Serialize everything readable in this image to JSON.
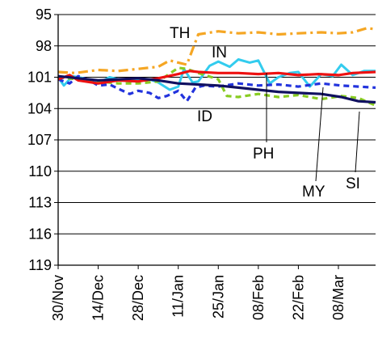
{
  "chart_data": {
    "type": "line",
    "title": "",
    "xlabel": "",
    "ylabel": "",
    "y_inverted": true,
    "ylim": [
      95,
      119
    ],
    "yticks": [
      95,
      98,
      101,
      104,
      107,
      110,
      113,
      116,
      119
    ],
    "xlim": [
      "2007-11-30",
      "2008-03-20"
    ],
    "x_tick_dates": [
      "2007-11-30",
      "2007-12-14",
      "2007-12-28",
      "2008-01-11",
      "2008-01-25",
      "2008-02-08",
      "2008-02-22",
      "2008-03-07"
    ],
    "x_tick_labels": [
      "30/Nov",
      "14/Dec",
      "28/Dec",
      "11/Jan",
      "25/Jan",
      "08/Feb",
      "22/Feb",
      "08/Mar"
    ],
    "grid": {
      "horizontal": true,
      "vertical": false
    },
    "legend": "none",
    "series": [
      {
        "name": "TH",
        "color": "#f5a623",
        "dash": "dashdot",
        "x": [
          "2007-11-30",
          "2007-12-06",
          "2007-12-14",
          "2007-12-21",
          "2007-12-28",
          "2008-01-04",
          "2008-01-08",
          "2008-01-14",
          "2008-01-18",
          "2008-01-25",
          "2008-02-01",
          "2008-02-08",
          "2008-02-15",
          "2008-02-22",
          "2008-03-01",
          "2008-03-07",
          "2008-03-12",
          "2008-03-17",
          "2008-03-20"
        ],
        "y": [
          100.5,
          100.6,
          100.3,
          100.4,
          100.2,
          100.0,
          99.4,
          99.8,
          96.9,
          96.6,
          96.8,
          96.7,
          96.9,
          96.8,
          96.7,
          96.8,
          96.7,
          96.3,
          96.4
        ]
      },
      {
        "name": "IN",
        "color": "#33ccee",
        "dash": "solid",
        "x": [
          "2007-11-30",
          "2007-12-02",
          "2007-12-05",
          "2007-12-09",
          "2007-12-14",
          "2007-12-18",
          "2007-12-21",
          "2007-12-25",
          "2007-12-28",
          "2008-01-01",
          "2008-01-04",
          "2008-01-08",
          "2008-01-11",
          "2008-01-13",
          "2008-01-16",
          "2008-01-18",
          "2008-01-22",
          "2008-01-25",
          "2008-01-29",
          "2008-02-01",
          "2008-02-05",
          "2008-02-08",
          "2008-02-12",
          "2008-02-15",
          "2008-02-19",
          "2008-02-22",
          "2008-02-26",
          "2008-03-01",
          "2008-03-05",
          "2008-03-08",
          "2008-03-12",
          "2008-03-16",
          "2008-03-20"
        ],
        "y": [
          101.0,
          101.8,
          100.9,
          101.1,
          101.6,
          101.0,
          101.2,
          101.4,
          101.3,
          101.2,
          101.5,
          102.2,
          101.9,
          100.2,
          101.5,
          101.4,
          99.9,
          99.5,
          100.0,
          99.3,
          99.6,
          99.4,
          101.6,
          101.0,
          100.6,
          100.5,
          101.9,
          100.7,
          100.9,
          99.8,
          100.8,
          100.4,
          100.4
        ]
      },
      {
        "name": "ID",
        "color": "#2233dd",
        "dash": "dashed",
        "x": [
          "2007-11-30",
          "2007-12-04",
          "2007-12-07",
          "2007-12-11",
          "2007-12-14",
          "2007-12-18",
          "2007-12-21",
          "2007-12-25",
          "2007-12-28",
          "2008-01-01",
          "2008-01-04",
          "2008-01-07",
          "2008-01-11",
          "2008-01-14",
          "2008-01-17",
          "2008-01-20",
          "2008-01-25",
          "2008-02-01",
          "2008-02-08",
          "2008-02-15",
          "2008-02-22",
          "2008-03-01",
          "2008-03-08",
          "2008-03-14",
          "2008-03-20"
        ],
        "y": [
          101.2,
          101.6,
          100.9,
          101.3,
          101.8,
          101.7,
          102.1,
          102.6,
          102.3,
          102.5,
          103.0,
          102.8,
          102.3,
          103.3,
          102.0,
          101.8,
          101.9,
          101.6,
          101.8,
          101.7,
          101.9,
          101.6,
          101.8,
          101.9,
          102.0
        ]
      },
      {
        "name": "MY",
        "color": "#88cc22",
        "dash": "dashed",
        "x": [
          "2007-11-30",
          "2007-12-07",
          "2007-12-14",
          "2007-12-21",
          "2007-12-28",
          "2008-01-04",
          "2008-01-11",
          "2008-01-14",
          "2008-01-18",
          "2008-01-25",
          "2008-01-28",
          "2008-02-01",
          "2008-02-08",
          "2008-02-15",
          "2008-02-22",
          "2008-03-01",
          "2008-03-08",
          "2008-03-14",
          "2008-03-20"
        ],
        "y": [
          101.0,
          101.2,
          101.4,
          101.6,
          101.6,
          101.4,
          100.1,
          100.2,
          100.6,
          101.2,
          102.8,
          102.9,
          102.6,
          102.9,
          102.7,
          103.1,
          102.8,
          103.0,
          103.7
        ]
      },
      {
        "name": "PH",
        "color": "#ee1111",
        "dash": "solid",
        "x": [
          "2007-11-30",
          "2007-12-04",
          "2007-12-07",
          "2007-12-14",
          "2007-12-21",
          "2007-12-28",
          "2008-01-04",
          "2008-01-11",
          "2008-01-15",
          "2008-01-18",
          "2008-01-25",
          "2008-02-01",
          "2008-02-08",
          "2008-02-15",
          "2008-02-22",
          "2008-02-29",
          "2008-03-07",
          "2008-03-12",
          "2008-03-20"
        ],
        "y": [
          101.2,
          100.8,
          101.3,
          101.6,
          101.3,
          101.4,
          101.1,
          100.7,
          100.4,
          100.5,
          100.6,
          100.6,
          100.7,
          100.6,
          100.8,
          100.7,
          100.8,
          100.6,
          100.5
        ]
      },
      {
        "name": "SI",
        "color": "#101060",
        "dash": "solid",
        "x": [
          "2007-11-30",
          "2007-12-07",
          "2007-12-14",
          "2007-12-21",
          "2007-12-28",
          "2008-01-04",
          "2008-01-11",
          "2008-01-18",
          "2008-01-25",
          "2008-02-01",
          "2008-02-08",
          "2008-02-15",
          "2008-02-22",
          "2008-03-01",
          "2008-03-08",
          "2008-03-14",
          "2008-03-20"
        ],
        "y": [
          100.9,
          101.1,
          101.3,
          101.2,
          101.1,
          101.3,
          101.6,
          101.7,
          101.8,
          102.0,
          102.2,
          102.4,
          102.5,
          102.6,
          102.9,
          103.3,
          103.4
        ]
      }
    ],
    "annotations": [
      {
        "text": "TH",
        "series": "TH"
      },
      {
        "text": "IN",
        "series": "IN"
      },
      {
        "text": "ID",
        "series": "ID"
      },
      {
        "text": "PH",
        "series": "PH"
      },
      {
        "text": "MY",
        "series": "MY"
      },
      {
        "text": "SI",
        "series": "SI"
      }
    ]
  }
}
